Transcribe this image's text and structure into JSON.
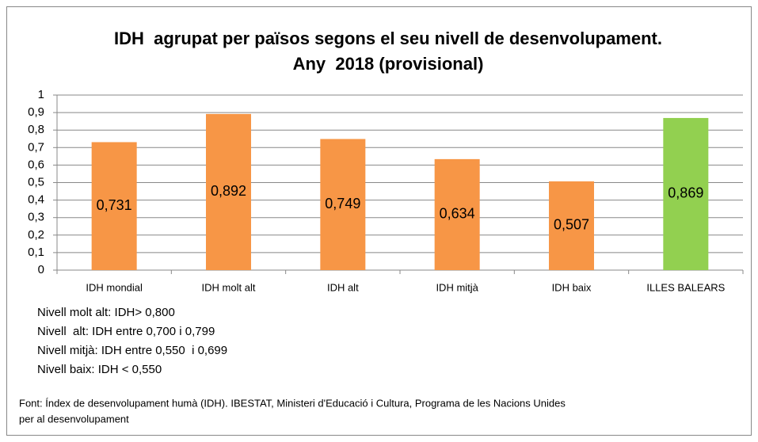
{
  "chart_data": {
    "type": "bar",
    "title": [
      "IDH  agrupat per països segons el seu nivell de desenvolupament.",
      "Any  2018 (provisional)"
    ],
    "categories": [
      "IDH mondial",
      "IDH molt alt",
      "IDH alt",
      "IDH mitjà",
      "IDH baix",
      "ILLES BALEARS"
    ],
    "values": [
      0.731,
      0.892,
      0.749,
      0.634,
      0.507,
      0.869
    ],
    "value_labels": [
      "0,731",
      "0,892",
      "0,749",
      "0,634",
      "0,507",
      "0,869"
    ],
    "colors": [
      "#f79646",
      "#f79646",
      "#f79646",
      "#f79646",
      "#f79646",
      "#92d050"
    ],
    "ylim": [
      0,
      1
    ],
    "yticks": [
      0,
      {
        "value": 0.1,
        "label": "0,1"
      },
      {
        "value": 0.2,
        "label": "0,2"
      },
      {
        "value": 0.3,
        "label": "0,3"
      },
      {
        "value": 0.4,
        "label": "0,4"
      },
      {
        "value": 0.5,
        "label": "0,5"
      },
      {
        "value": 0.6,
        "label": "0,6"
      },
      {
        "value": 0.7,
        "label": "0,7"
      },
      {
        "value": 0.8,
        "label": "0,8"
      },
      {
        "value": 0.9,
        "label": "0,9"
      },
      1
    ],
    "grid": true,
    "notes": [
      "Nivell molt alt: IDH> 0,800",
      "Nivell  alt: IDH entre 0,700 i 0,799",
      "Nivell mitjà: IDH entre 0,550  i 0,699",
      "Nivell baix: IDH < 0,550"
    ],
    "source": [
      "Font: Índex de desenvolupament humà (IDH). IBESTAT, Ministeri d'Educació i Cultura, Programa de les Nacions Unides",
      "per al desenvolupament"
    ]
  }
}
